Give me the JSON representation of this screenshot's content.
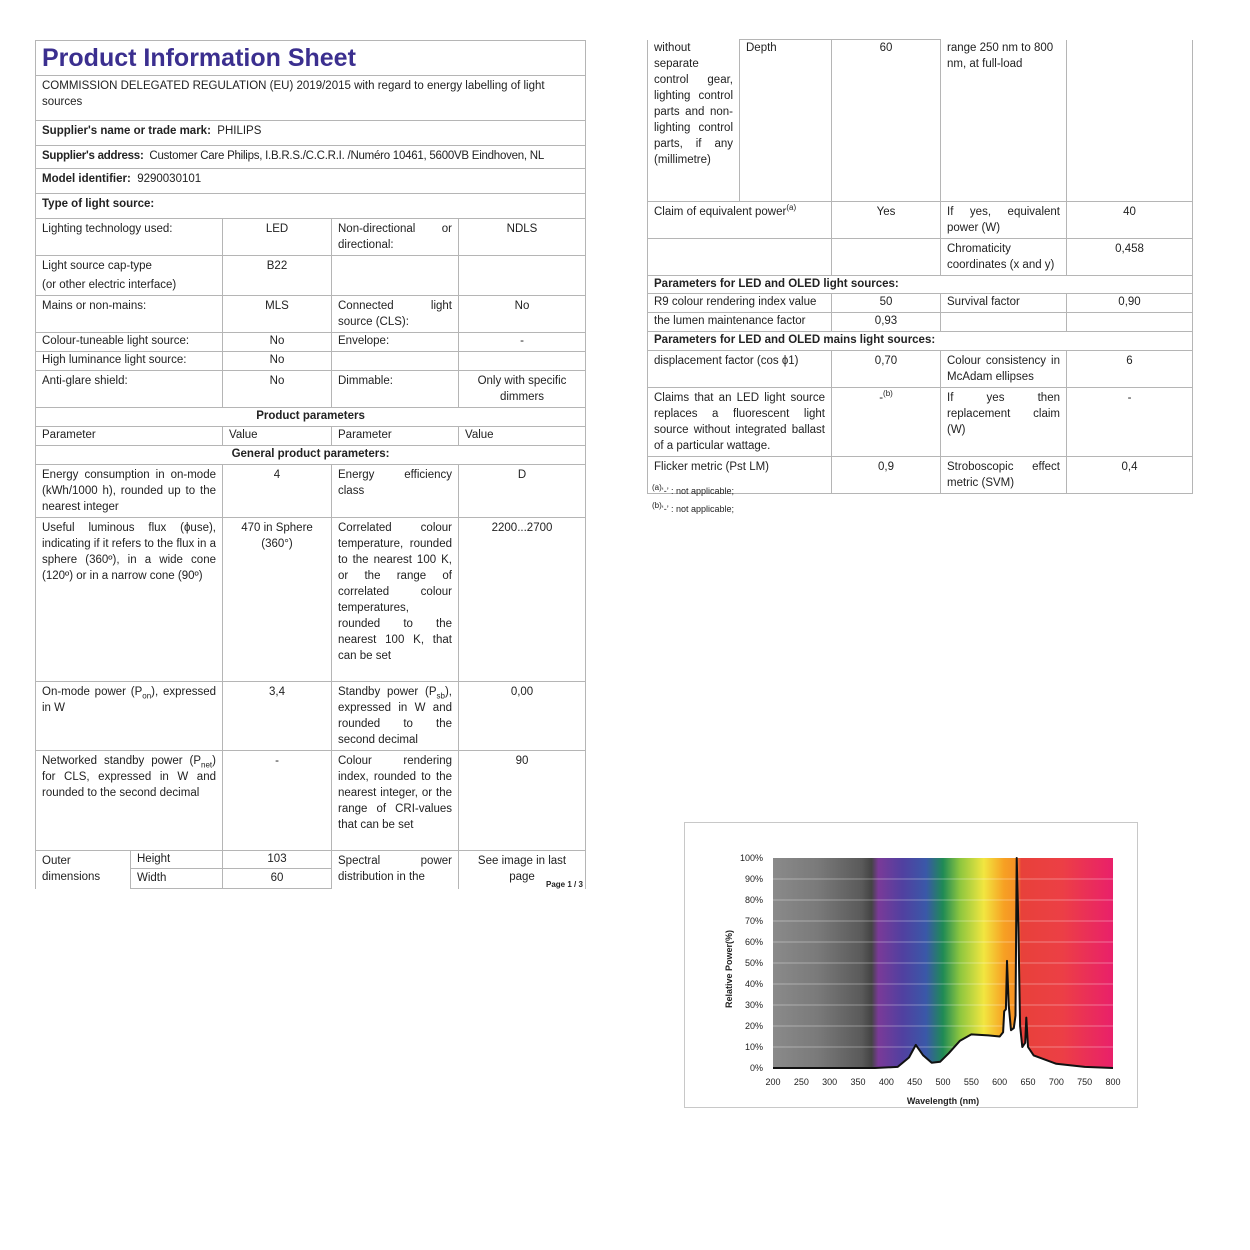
{
  "left": {
    "title": "Product Information Sheet",
    "regulation": "COMMISSION DELEGATED REGULATION (EU) 2019/2015 with regard to energy labelling of light sources",
    "supplier_name_label": "Supplier's name or trade mark:",
    "supplier_name": "PHILIPS",
    "supplier_address_label": "Supplier's address:",
    "supplier_address": "Customer Care Philips, I.B.R.S./C.C.R.I. /Numéro 10461, 5600VB Eindhoven, NL",
    "model_label": "Model identifier:",
    "model": "9290030101",
    "type_label": "Type of light source:",
    "type_rows": [
      {
        "p1": "Lighting technology used:",
        "v1": "LED",
        "p2": "Non-directional or directional:",
        "v2": "NDLS"
      },
      {
        "p1": "Light source cap-type",
        "p1b": "(or other electric interface)",
        "v1": "B22",
        "p2": "",
        "v2": ""
      },
      {
        "p1": "Mains or non-mains:",
        "v1": "MLS",
        "p2": "Connected light source (CLS):",
        "v2": "No"
      },
      {
        "p1": "Colour-tuneable light source:",
        "v1": "No",
        "p2": "Envelope:",
        "v2": "-"
      },
      {
        "p1": "High luminance light source:",
        "v1": "No",
        "p2": "",
        "v2": ""
      },
      {
        "p1": "Anti-glare shield:",
        "v1": "No",
        "p2": "Dimmable:",
        "v2": "Only with specific dimmers"
      }
    ],
    "product_parameters": "Product parameters",
    "col_parameter": "Parameter",
    "col_value": "Value",
    "general": "General product parameters:",
    "energy_consumption": "Energy consumption in on-mode (kWh/1000 h), rounded up to the nearest integer",
    "energy_consumption_value": "4",
    "energy_class": "Energy efficiency class",
    "energy_class_value": "D",
    "flux": "Useful luminous flux (ϕuse), indicating if it refers to the flux in a sphere (360º), in a wide cone (120º) or in a narrow cone (90º)",
    "flux_value": "470 in Sphere (360°)",
    "cct": "Correlated colour temperature, rounded to the nearest 100 K, or the range of correlated colour temperatures, rounded to the nearest 100 K, that can be set",
    "cct_value": "2200...2700",
    "on_power_a": "On-mode power (P",
    "on_power_sub": "on",
    "on_power_b": "), expressed in W",
    "on_power_value": "3,4",
    "standby_a": "Standby power (P",
    "standby_sub": "sb",
    "standby_b": "), expressed in W and rounded to the second decimal",
    "standby_value": "0,00",
    "net_a": "Networked standby power (P",
    "net_sub": "net",
    "net_b": ") for CLS, expressed in W and rounded to the second decimal",
    "net_value": "-",
    "cri": "Colour rendering index, rounded to the nearest integer, or the range of CRI-values that can be set",
    "cri_value": "90",
    "outer_dimensions": "Outer dimensions",
    "height_label": "Height",
    "height_value": "103",
    "width_label": "Width",
    "width_value": "60",
    "spectral": "Spectral power distribution in the",
    "spectral_value": "See image in last page",
    "page": "Page 1 / 3"
  },
  "right": {
    "cont_text": "without separate control gear, lighting control parts and non-lighting control parts, if any (millimetre)",
    "depth_label": "Depth",
    "depth_value": "60",
    "spectral_cont": "range 250 nm to 800 nm, at full-load",
    "claim_power": "Claim of equivalent power",
    "claim_power_sup": "(a)",
    "claim_power_value": "Yes",
    "equiv_power": "If yes, equivalent power (W)",
    "equiv_power_value": "40",
    "chromaticity": "Chromaticity coordinates (x and y)",
    "chromaticity_value": "0,458",
    "led_params": "Parameters for LED and OLED light sources:",
    "r9": "R9 colour rendering index value",
    "r9_value": "50",
    "survival": "Survival factor",
    "survival_value": "0,90",
    "lumen_maint": "the lumen maintenance factor",
    "lumen_maint_value": "0,93",
    "mains_params": "Parameters for LED and OLED mains light sources:",
    "displacement": "displacement factor (cos ϕ1)",
    "displacement_value": "0,70",
    "colour_consistency": "Colour consistency in McAdam ellipses",
    "colour_consistency_value": "6",
    "fluor_claim": "Claims that an LED light source replaces a fluorescent light source without integrated ballast of a particular wattage.",
    "fluor_claim_value": "-",
    "fluor_claim_sup": "(b)",
    "replacement": "If yes then replacement claim (W)",
    "replacement_value": "-",
    "flicker": "Flicker metric (Pst LM)",
    "flicker_value": "0,9",
    "svm": "Stroboscopic effect metric (SVM)",
    "svm_value": "0,4",
    "footnote_a_mark": "(a)",
    "footnote_a": "‘-’ : not applicable;",
    "footnote_b_mark": "(b)",
    "footnote_b": "‘-’ : not applicable;"
  },
  "title_color": "#3b2f8f",
  "chart_data": {
    "type": "line",
    "title": "",
    "xlabel": "Wavelength (nm)",
    "ylabel": "Relative Power(%)",
    "xlim": [
      200,
      800
    ],
    "ylim": [
      0,
      100
    ],
    "x_ticks": [
      "200",
      "250",
      "300",
      "350",
      "400",
      "450",
      "500",
      "550",
      "600",
      "650",
      "700",
      "750",
      "800"
    ],
    "y_ticks": [
      "0%",
      "10%",
      "20%",
      "30%",
      "40%",
      "50%",
      "60%",
      "70%",
      "80%",
      "90%",
      "100%"
    ],
    "grid": true,
    "background": "visible-spectrum gradient",
    "series": [
      {
        "x": [
          200,
          380,
          420,
          440,
          452,
          465,
          480,
          495,
          510,
          530,
          550,
          580,
          600,
          606,
          608,
          611,
          613,
          616,
          620,
          625,
          628,
          630,
          633,
          636,
          640,
          645,
          647,
          650,
          660,
          700,
          750,
          800
        ],
        "y": [
          0,
          0,
          0.5,
          5,
          11,
          6,
          2.5,
          3,
          7,
          13,
          16,
          15.5,
          15,
          17,
          27,
          28,
          51,
          30,
          18,
          19,
          25,
          100,
          67,
          20,
          10,
          12,
          24,
          10,
          6,
          2,
          0.5,
          0
        ]
      }
    ]
  }
}
